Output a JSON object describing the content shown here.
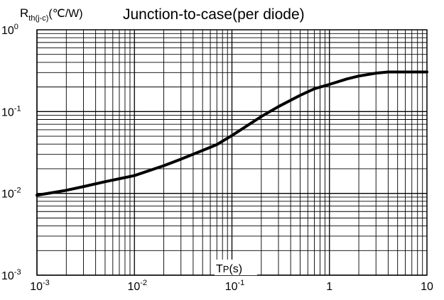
{
  "chart_data": {
    "type": "line",
    "title": "Junction-to-case(per diode)",
    "ylabel_main": "R",
    "ylabel_sub": "th(j-c)",
    "ylabel_unit": "(℃/W)",
    "xlabel_main": "T",
    "xlabel_sub": "P",
    "xlabel_unit": "(s)",
    "xscale": "log",
    "yscale": "log",
    "xlim": [
      0.001,
      10
    ],
    "ylim": [
      0.001,
      1
    ],
    "grid": true,
    "x_ticks": [
      {
        "base": "10",
        "exp": "-3"
      },
      {
        "base": "10",
        "exp": "-2"
      },
      {
        "base": "10",
        "exp": "-1"
      },
      {
        "base": "1",
        "exp": ""
      },
      {
        "base": "10",
        "exp": ""
      }
    ],
    "y_ticks": [
      {
        "base": "10",
        "exp": "0"
      },
      {
        "base": "10",
        "exp": "-1"
      },
      {
        "base": "10",
        "exp": "-2"
      },
      {
        "base": "10",
        "exp": "-3"
      }
    ],
    "series": [
      {
        "x": [
          0.001,
          0.002,
          0.003,
          0.005,
          0.007,
          0.01,
          0.02,
          0.03,
          0.05,
          0.07,
          0.1,
          0.2,
          0.3,
          0.5,
          0.7,
          1,
          1.5,
          2,
          3,
          4,
          5,
          7,
          10
        ],
        "y": [
          0.0095,
          0.0109,
          0.0121,
          0.0139,
          0.0151,
          0.0165,
          0.0218,
          0.0262,
          0.0335,
          0.0395,
          0.051,
          0.087,
          0.115,
          0.158,
          0.19,
          0.215,
          0.25,
          0.272,
          0.295,
          0.305,
          0.305,
          0.305,
          0.305
        ]
      }
    ]
  }
}
